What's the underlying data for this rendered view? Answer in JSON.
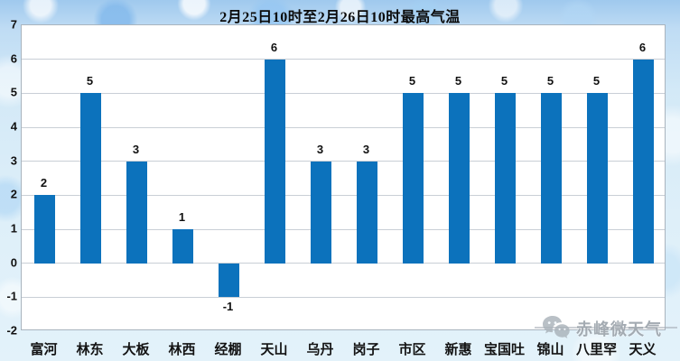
{
  "chart_data": {
    "type": "bar",
    "title": "2月25日10时至2月26日10时最高气温",
    "categories": [
      "富河",
      "林东",
      "大板",
      "林西",
      "经棚",
      "天山",
      "乌丹",
      "岗子",
      "市区",
      "新惠",
      "宝国吐",
      "锦山",
      "八里罕",
      "天义"
    ],
    "values": [
      2,
      5,
      3,
      1,
      -1,
      6,
      3,
      3,
      5,
      5,
      5,
      5,
      5,
      6
    ],
    "xlabel": "",
    "ylabel": "",
    "ylim": [
      -2,
      7
    ],
    "yticks": [
      7,
      6,
      5,
      4,
      3,
      2,
      1,
      0,
      -1,
      -2
    ],
    "grid": "horizontal",
    "legend": "none",
    "data_labels": true
  },
  "watermark": {
    "text": "赤峰微天气",
    "icon": "wechat-icon"
  },
  "colors": {
    "bar": "#0C72BC",
    "axis_text": "#111111",
    "gridline": "#C9CFD6",
    "plot_border": "#A9B4BE",
    "plot_background": "#FFFFFF",
    "background_top": "#9FC9EE",
    "background_bottom": "#E3F2FA",
    "watermark_gray": "#949CA4"
  }
}
